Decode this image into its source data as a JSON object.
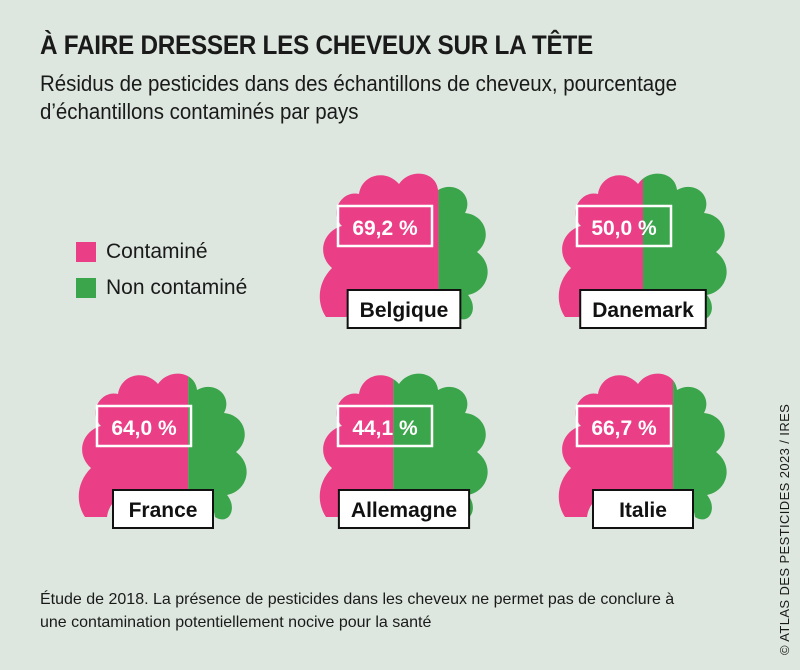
{
  "title": "À FAIRE DRESSER LES CHEVEUX SUR LA TÊTE",
  "subtitle": "Résidus de pesticides dans des échantillons de cheveux, pourcentage d’échantillons contaminés par pays",
  "legend": [
    {
      "label": "Contaminé",
      "color": "#ea3f86"
    },
    {
      "label": "Non contaminé",
      "color": "#3aa54a"
    }
  ],
  "footnote": "Étude de 2018. La présence de pesticides dans les cheveux ne permet pas de conclure à une contamination potentiellement nocive pour la santé",
  "credit": "© ATLAS DES PESTICIDES 2023 / IRES",
  "chart_data": {
    "type": "bar",
    "categories": [
      "Belgique",
      "Danemark",
      "France",
      "Allemagne",
      "Italie"
    ],
    "series": [
      {
        "name": "Contaminé",
        "values": [
          69.2,
          50.0,
          64.0,
          44.1,
          66.7
        ],
        "labels": [
          "69,2 %",
          "50,0 %",
          "64,0 %",
          "44,1 %",
          "66,7 %"
        ]
      },
      {
        "name": "Non contaminé",
        "values": [
          30.8,
          50.0,
          36.0,
          55.9,
          33.3
        ]
      }
    ],
    "unit": "%",
    "colors": {
      "contaminated": "#ea3f86",
      "clean": "#3aa54a"
    }
  }
}
